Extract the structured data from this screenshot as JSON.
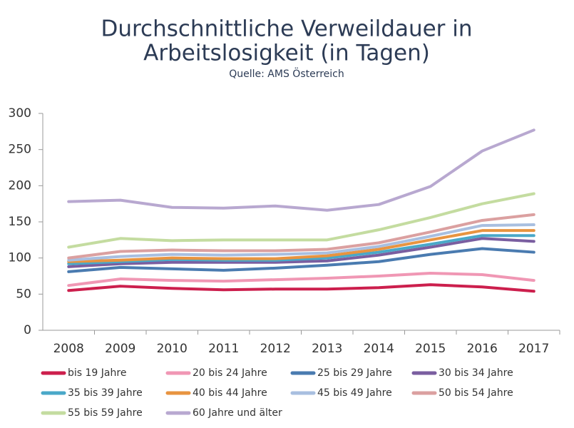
{
  "chart_data": {
    "type": "line",
    "title": [
      "Durchschnittliche Verweildauer in",
      "Arbeitslosigkeit (in Tagen)"
    ],
    "subtitle": "Quelle: AMS Österreich",
    "categories": [
      "2008",
      "2009",
      "2010",
      "2011",
      "2012",
      "2013",
      "2014",
      "2015",
      "2016",
      "2017"
    ],
    "ylim": [
      0,
      300
    ],
    "yticks": [
      0,
      50,
      100,
      150,
      200,
      250,
      300
    ],
    "grid": false,
    "series": [
      {
        "name": "bis 19 Jahre",
        "color": "#cc1f4d",
        "values": [
          55,
          61,
          58,
          56,
          57,
          57,
          59,
          63,
          60,
          54
        ]
      },
      {
        "name": "20 bis 24 Jahre",
        "color": "#f097b4",
        "values": [
          62,
          71,
          69,
          68,
          70,
          72,
          75,
          79,
          77,
          69
        ]
      },
      {
        "name": "25 bis 29 Jahre",
        "color": "#4a7bb0",
        "values": [
          81,
          87,
          85,
          83,
          86,
          90,
          95,
          105,
          113,
          108
        ]
      },
      {
        "name": "30 bis 34 Jahre",
        "color": "#7a5ea0",
        "values": [
          88,
          92,
          94,
          94,
          94,
          96,
          104,
          115,
          127,
          123
        ]
      },
      {
        "name": "35 bis 39 Jahre",
        "color": "#4aa8c8",
        "values": [
          92,
          95,
          98,
          97,
          97,
          100,
          108,
          119,
          131,
          131
        ]
      },
      {
        "name": "40 bis 44 Jahre",
        "color": "#e89440",
        "values": [
          95,
          97,
          100,
          99,
          99,
          103,
          112,
          125,
          138,
          138
        ]
      },
      {
        "name": "45 bis 49 Jahre",
        "color": "#a8bfe0",
        "values": [
          97,
          102,
          105,
          104,
          105,
          107,
          116,
          130,
          145,
          146
        ]
      },
      {
        "name": "50 bis 54 Jahre",
        "color": "#dba0a0",
        "values": [
          100,
          109,
          111,
          110,
          110,
          112,
          121,
          136,
          152,
          160
        ]
      },
      {
        "name": "55 bis 59 Jahre",
        "color": "#c4dca0",
        "values": [
          115,
          127,
          124,
          125,
          125,
          125,
          139,
          156,
          175,
          189
        ]
      },
      {
        "name": "60 Jahre und älter",
        "color": "#b8a8d0",
        "values": [
          178,
          180,
          170,
          169,
          172,
          166,
          174,
          199,
          248,
          277
        ]
      }
    ]
  }
}
